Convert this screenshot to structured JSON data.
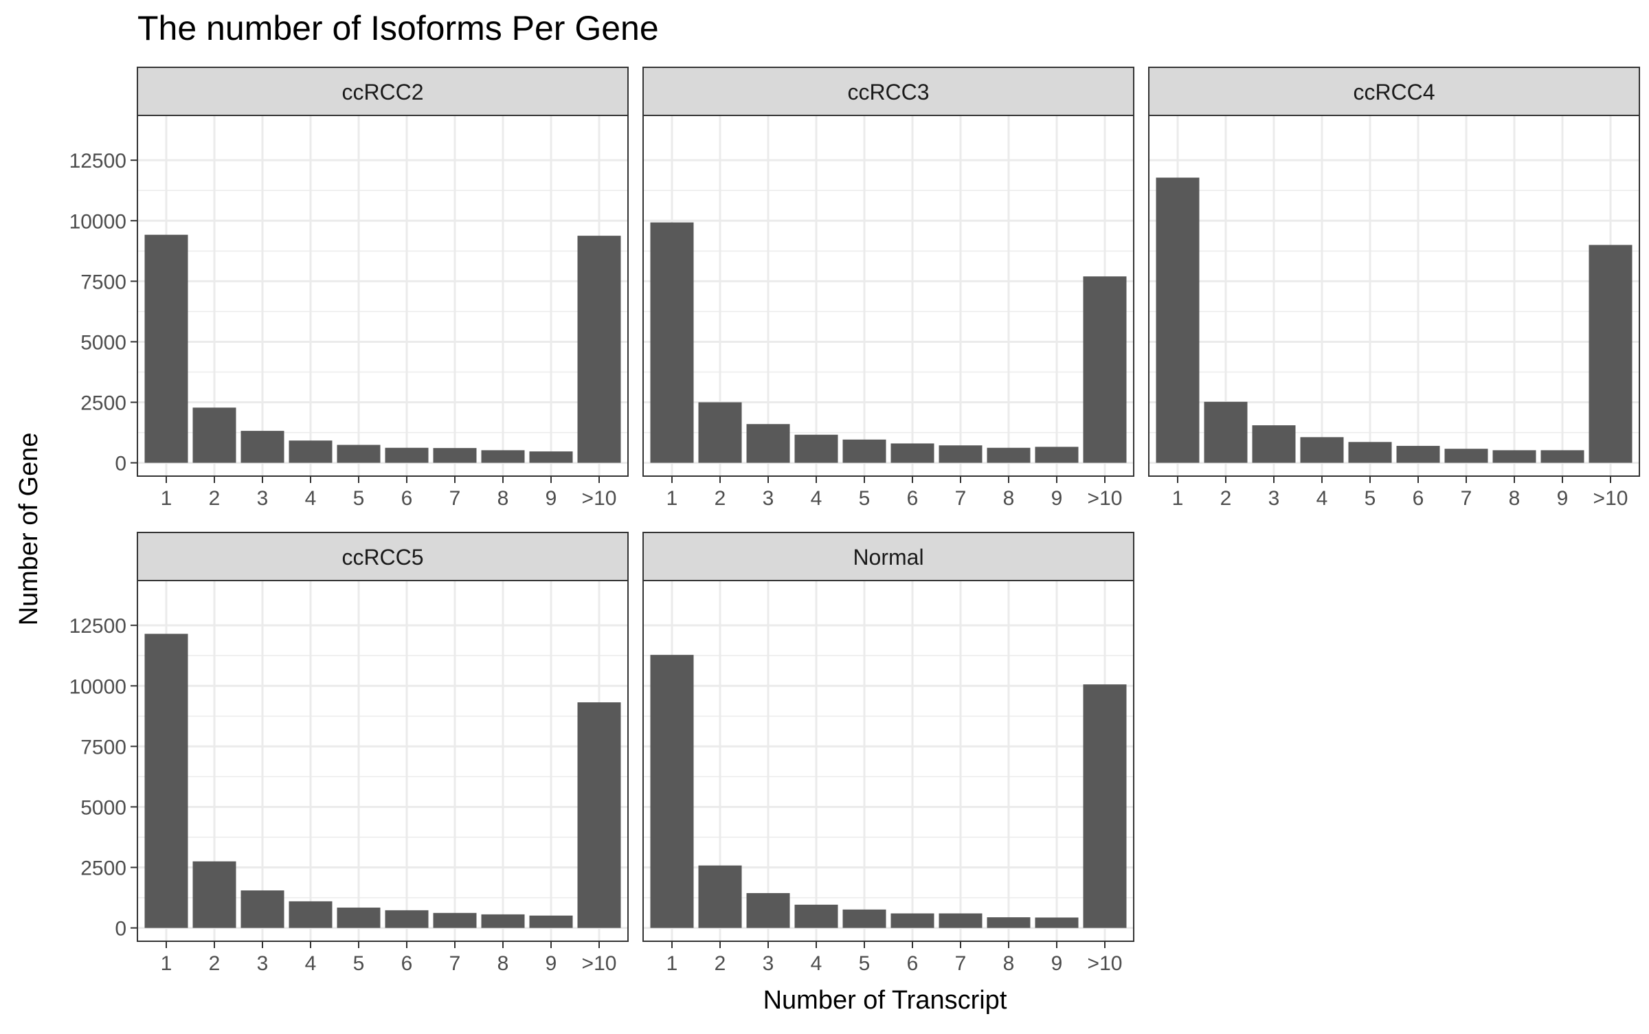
{
  "chart_data": {
    "type": "bar",
    "title": "The number of Isoforms Per Gene",
    "xlabel": "Number of Transcript",
    "ylabel": "Number of Gene",
    "categories": [
      "1",
      "2",
      "3",
      "4",
      "5",
      "6",
      "7",
      "8",
      "9",
      ">10"
    ],
    "ylim": [
      -550,
      14350
    ],
    "yticks": [
      0,
      2500,
      5000,
      7500,
      10000,
      12500
    ],
    "ytick_labels": [
      "0",
      "2500",
      "5000",
      "7500",
      "10000",
      "12500"
    ],
    "grid": true,
    "bar_color": "#595959",
    "panels": [
      {
        "name": "ccRCC2",
        "values": [
          9420,
          2280,
          1320,
          920,
          740,
          620,
          610,
          520,
          470,
          9380
        ]
      },
      {
        "name": "ccRCC3",
        "values": [
          9930,
          2500,
          1600,
          1160,
          960,
          800,
          720,
          620,
          660,
          7700
        ]
      },
      {
        "name": "ccRCC4",
        "values": [
          11780,
          2520,
          1550,
          1060,
          860,
          700,
          580,
          520,
          520,
          9000
        ]
      },
      {
        "name": "ccRCC5",
        "values": [
          12150,
          2750,
          1550,
          1100,
          840,
          730,
          620,
          560,
          510,
          9320
        ]
      },
      {
        "name": "Normal",
        "values": [
          11280,
          2580,
          1440,
          960,
          760,
          600,
          600,
          440,
          430,
          10060
        ]
      }
    ]
  }
}
